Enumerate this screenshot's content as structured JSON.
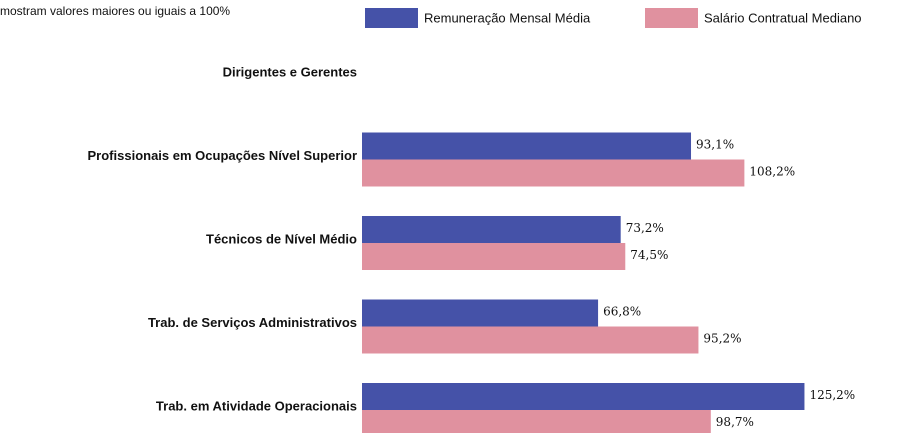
{
  "chart_data": {
    "type": "bar",
    "orientation": "horizontal",
    "subtitle": "mostram valores maiores ou iguais a 100%",
    "categories": [
      "Dirigentes e Gerentes",
      "Profissionais em Ocupações Nível Superior",
      "Técnicos de Nível Médio",
      "Trab. de Serviços Administrativos",
      "Trab. em Atividade Operacionais"
    ],
    "series": [
      {
        "name": "Remuneração Mensal Média",
        "color": "#4552a8",
        "values": [
          null,
          93.1,
          73.2,
          66.8,
          125.2
        ],
        "value_labels": [
          null,
          "93,1%",
          "73,2%",
          "66,8%",
          "125,2%"
        ]
      },
      {
        "name": "Salário Contratual Mediano",
        "color": "#e0919f",
        "values": [
          null,
          108.2,
          74.5,
          95.2,
          98.7
        ],
        "value_labels": [
          null,
          "108,2%",
          "74,5%",
          "95,2%",
          "98,7%"
        ]
      }
    ]
  }
}
